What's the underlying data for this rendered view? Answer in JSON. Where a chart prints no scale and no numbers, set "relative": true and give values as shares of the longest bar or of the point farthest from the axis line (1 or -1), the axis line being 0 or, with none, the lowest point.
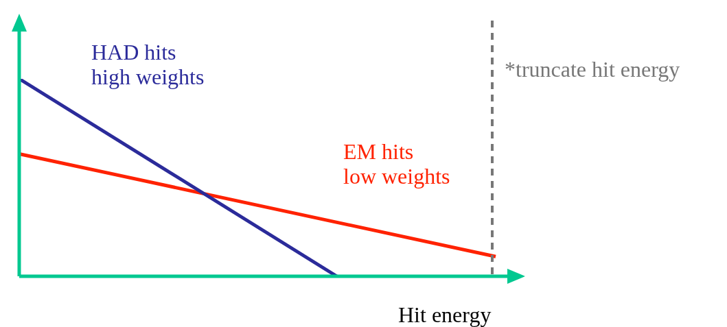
{
  "chart_data": {
    "type": "line",
    "relative": true,
    "xlabel": "Hit energy",
    "categories": [
      null,
      null,
      null,
      null
    ],
    "legend": false,
    "marker": "none",
    "line_style": "solid",
    "series": [
      {
        "name": "HAD hits\nhigh weights",
        "color": "#2b2b9a",
        "values": [
          1,
          null,
          0,
          null
        ]
      },
      {
        "name": "EM hits\nlow weights",
        "color": "#ff2200",
        "values": [
          0.62,
          null,
          null,
          0.1
        ]
      }
    ],
    "ref_lines": [
      {
        "axis": "x",
        "label": "*truncate hit energy",
        "color": "#777777",
        "line_style": "dashed"
      }
    ]
  }
}
